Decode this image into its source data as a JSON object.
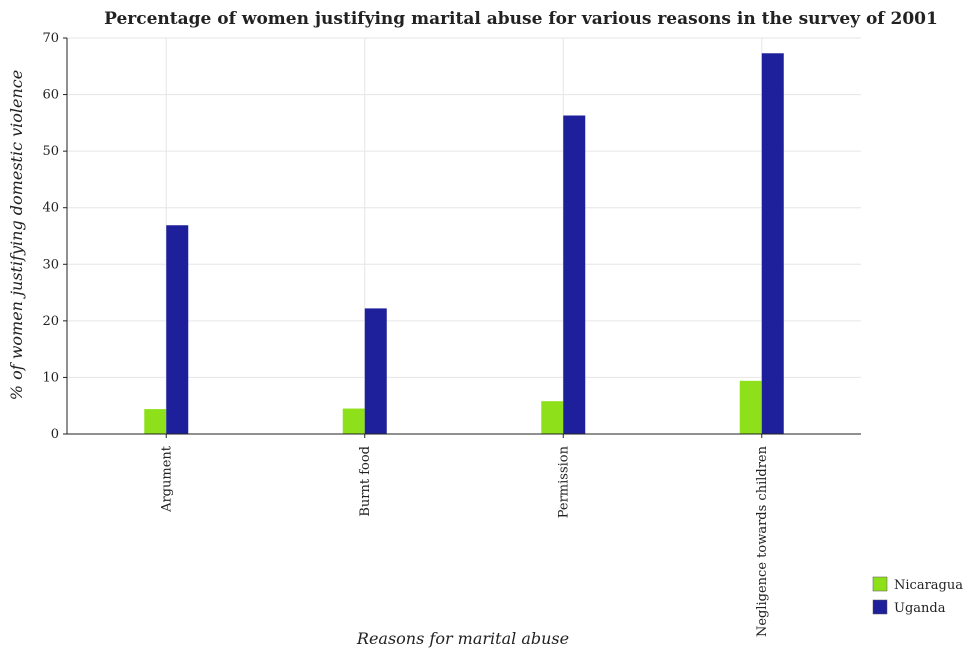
{
  "chart_data": {
    "type": "bar",
    "title": "Percentage of women justifying marital abuse for various reasons in the survey of 2001",
    "xlabel": "Reasons for marital abuse",
    "ylabel": "% of women justifying domestic violence",
    "categories": [
      "Argument",
      "Burnt food",
      "Permission",
      "Negligence towards children"
    ],
    "series": [
      {
        "name": "Nicaragua",
        "color": "#8ee01b",
        "values": [
          4.4,
          4.5,
          5.8,
          9.4
        ]
      },
      {
        "name": "Uganda",
        "color": "#1e1f9a",
        "values": [
          36.9,
          22.2,
          56.3,
          67.3
        ]
      }
    ],
    "ylim": [
      0,
      70
    ],
    "yticks": [
      0,
      10,
      20,
      30,
      40,
      50,
      60,
      70
    ],
    "grid": true,
    "legend_position": "bottom-right"
  }
}
